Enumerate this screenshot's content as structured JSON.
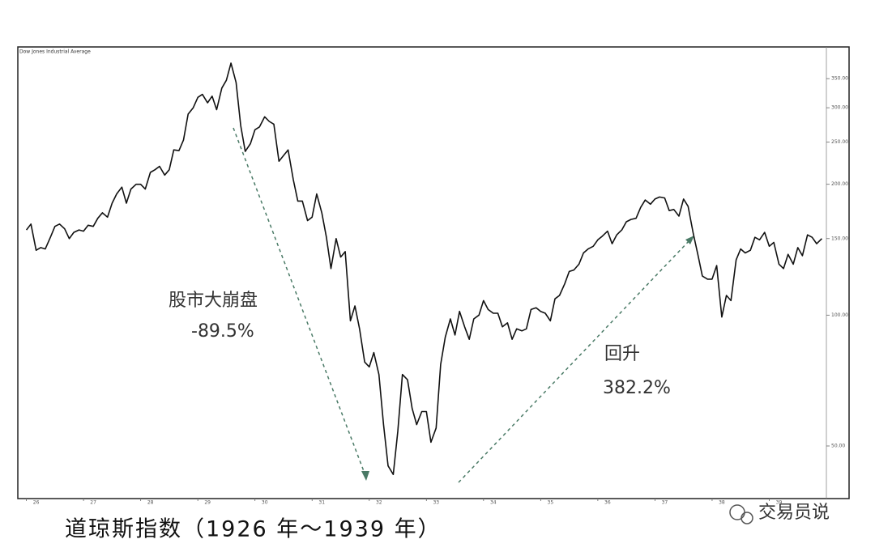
{
  "chart_data": {
    "type": "line",
    "title": "道琼斯指数（1926 年～1939 年）",
    "log_scale": true,
    "xlim": [
      1925.85,
      1940
    ],
    "xticks": [
      {
        "value": 1926,
        "label": "26"
      },
      {
        "value": 1927,
        "label": "27"
      },
      {
        "value": 1928,
        "label": "28"
      },
      {
        "value": 1929,
        "label": "29"
      },
      {
        "value": 1930,
        "label": "30"
      },
      {
        "value": 1931,
        "label": "31"
      },
      {
        "value": 1932,
        "label": "32"
      },
      {
        "value": 1933,
        "label": "33"
      },
      {
        "value": 1934,
        "label": "34"
      },
      {
        "value": 1935,
        "label": "35"
      },
      {
        "value": 1936,
        "label": "36"
      },
      {
        "value": 1937,
        "label": "37"
      },
      {
        "value": 1938,
        "label": "38"
      },
      {
        "value": 1939,
        "label": "39"
      }
    ],
    "ylim": [
      38,
      414
    ],
    "yticks": [
      {
        "value": 50,
        "label": "50.00"
      },
      {
        "value": 100,
        "label": "100.00"
      },
      {
        "value": 150,
        "label": "150.00"
      },
      {
        "value": 200,
        "label": "200.00"
      },
      {
        "value": 250,
        "label": "250.00"
      },
      {
        "value": 300,
        "label": "300.00"
      },
      {
        "value": 350,
        "label": "350.00"
      }
    ],
    "x": [
      1926,
      1926.08,
      1926.17,
      1926.25,
      1926.33,
      1926.42,
      1926.5,
      1926.58,
      1926.67,
      1926.75,
      1926.83,
      1926.92,
      1927,
      1927.08,
      1927.17,
      1927.25,
      1927.33,
      1927.42,
      1927.5,
      1927.58,
      1927.67,
      1927.75,
      1927.83,
      1927.92,
      1928,
      1928.08,
      1928.17,
      1928.25,
      1928.33,
      1928.42,
      1928.5,
      1928.58,
      1928.67,
      1928.75,
      1928.83,
      1928.92,
      1929,
      1929.08,
      1929.17,
      1929.25,
      1929.33,
      1929.42,
      1929.5,
      1929.58,
      1929.67,
      1929.75,
      1929.83,
      1929.92,
      1930,
      1930.08,
      1930.17,
      1930.25,
      1930.33,
      1930.42,
      1930.5,
      1930.58,
      1930.67,
      1930.75,
      1930.83,
      1930.92,
      1931,
      1931.08,
      1931.17,
      1931.25,
      1931.33,
      1931.42,
      1931.5,
      1931.58,
      1931.67,
      1931.75,
      1931.83,
      1931.92,
      1932,
      1932.08,
      1932.17,
      1932.25,
      1932.33,
      1932.42,
      1932.5,
      1932.58,
      1932.67,
      1932.75,
      1932.83,
      1932.92,
      1933,
      1933.08,
      1933.17,
      1933.25,
      1933.33,
      1933.42,
      1933.5,
      1933.58,
      1933.67,
      1933.75,
      1933.83,
      1933.92,
      1934,
      1934.08,
      1934.17,
      1934.25,
      1934.33,
      1934.42,
      1934.5,
      1934.58,
      1934.67,
      1934.75,
      1934.83,
      1934.92,
      1935,
      1935.08,
      1935.17,
      1935.25,
      1935.33,
      1935.42,
      1935.5,
      1935.58,
      1935.67,
      1935.75,
      1935.83,
      1935.92,
      1936,
      1936.08,
      1936.17,
      1936.25,
      1936.33,
      1936.42,
      1936.5,
      1936.58,
      1936.67,
      1936.75,
      1936.83,
      1936.92,
      1937,
      1937.08,
      1937.17,
      1937.25,
      1937.33,
      1937.42,
      1937.5,
      1937.58,
      1937.67,
      1937.75,
      1937.83,
      1937.92,
      1938,
      1938.08,
      1938.17,
      1938.25,
      1938.33,
      1938.42,
      1938.5,
      1938.58,
      1938.67,
      1938.75,
      1938.83,
      1938.92,
      1939,
      1939.08,
      1939.17,
      1939.25,
      1939.33,
      1939.42,
      1939.5,
      1939.58,
      1939.67,
      1939.75,
      1939.83,
      1939.92
    ],
    "series": [
      {
        "name": "Dow Jones Industrial Average",
        "color": "#111111",
        "values": [
          157,
          162,
          141,
          143,
          142,
          151,
          160,
          162,
          158,
          150,
          155,
          157,
          156,
          161,
          160,
          167,
          172,
          168,
          181,
          190,
          197,
          181,
          195,
          200,
          200,
          195,
          213,
          216,
          220,
          210,
          216,
          240,
          239,
          253,
          290,
          300,
          317,
          322,
          308,
          319,
          297,
          333,
          347,
          380,
          343,
          273,
          238,
          248,
          267,
          271,
          286,
          279,
          275,
          226,
          233,
          240,
          205,
          183,
          183,
          165,
          168,
          190,
          172,
          151,
          128,
          150,
          136,
          140,
          97,
          105,
          93,
          78,
          76,
          82,
          73,
          56,
          45,
          43,
          54,
          73,
          71,
          61,
          56,
          60,
          60,
          51,
          55,
          77,
          89,
          98,
          90,
          102,
          94,
          88,
          98,
          100,
          108,
          103,
          101,
          101,
          94,
          96,
          88,
          93,
          92,
          93,
          103,
          104,
          102,
          101,
          97,
          109,
          111,
          118,
          126,
          127,
          131,
          139,
          142,
          144,
          149,
          152,
          156,
          146,
          153,
          157,
          164,
          166,
          167,
          177,
          184,
          180,
          185,
          187,
          186,
          174,
          175,
          169,
          185,
          178,
          154,
          138,
          123,
          121,
          121,
          130,
          99,
          111,
          108,
          134,
          142,
          139,
          141,
          151,
          149,
          155,
          144,
          147,
          131,
          128,
          138,
          131,
          143,
          137,
          153,
          151,
          146,
          150
        ]
      }
    ],
    "annotations": [
      "股市大崩盘",
      "-89.5%",
      "回升",
      "382.2%"
    ]
  },
  "watermark": "交易员说"
}
